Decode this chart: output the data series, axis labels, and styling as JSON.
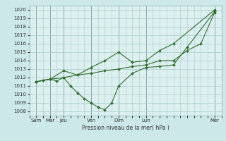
{
  "xlabel": "Pression niveau de la mer( hPa )",
  "ylim_min": 1007.5,
  "ylim_max": 1020.5,
  "yticks": [
    1008,
    1009,
    1010,
    1011,
    1012,
    1013,
    1014,
    1015,
    1016,
    1017,
    1018,
    1019,
    1020
  ],
  "x_day_labels": [
    "Sam",
    "Mar",
    "Jeu",
    "Ven",
    "Dim",
    "Lun",
    "Mer"
  ],
  "x_day_positions": [
    0,
    1,
    2,
    4,
    6,
    8,
    13
  ],
  "background_color": "#cce8e8",
  "plot_bg_color": "#ddf0f0",
  "grid_color": "#aacccc",
  "line_color": "#2d6e2d",
  "line1_x": [
    0,
    0.5,
    1,
    1.5,
    2,
    2.5,
    3,
    3.5,
    4,
    4.5,
    5,
    5.5,
    6,
    7,
    8,
    9,
    10,
    11,
    13
  ],
  "line1_y": [
    1011.5,
    1011.7,
    1011.8,
    1011.6,
    1012.0,
    1011.0,
    1010.2,
    1009.5,
    1009.0,
    1008.5,
    1008.2,
    1009.0,
    1011.0,
    1012.5,
    1013.2,
    1013.3,
    1013.5,
    1015.6,
    1019.8
  ],
  "line2_x": [
    0,
    1,
    2,
    3,
    4,
    5,
    6,
    7,
    8,
    9,
    10,
    11,
    12,
    13
  ],
  "line2_y": [
    1011.5,
    1011.8,
    1012.0,
    1012.3,
    1012.5,
    1012.8,
    1013.0,
    1013.3,
    1013.5,
    1014.0,
    1014.0,
    1015.2,
    1016.0,
    1019.7
  ],
  "line3_x": [
    0,
    1,
    2,
    3,
    4,
    5,
    6,
    7,
    8,
    9,
    10,
    13
  ],
  "line3_y": [
    1011.5,
    1011.8,
    1012.8,
    1012.3,
    1013.2,
    1014.0,
    1015.0,
    1013.8,
    1014.0,
    1015.2,
    1016.0,
    1020.0
  ],
  "xlim_min": -0.5,
  "xlim_max": 13.5
}
